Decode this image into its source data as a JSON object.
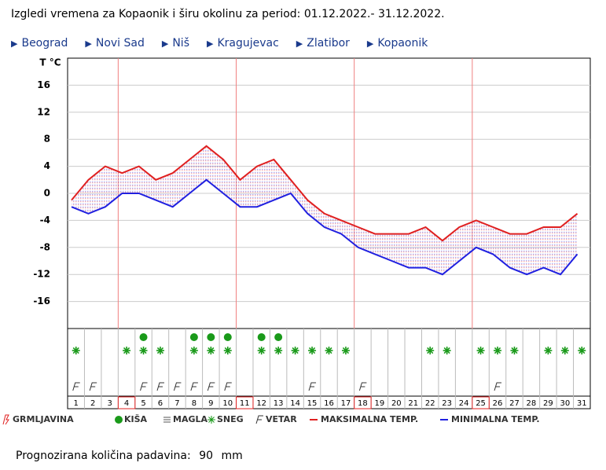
{
  "header": {
    "title": "Izgledi vremena za Kopaonik i širu okolinu za period: 01.12.2022.- 31.12.2022."
  },
  "nav": [
    "Beograd",
    "Novi Sad",
    "Niš",
    "Kragujevac",
    "Zlatibor",
    "Kopaonik"
  ],
  "chart_data": {
    "type": "line",
    "y_label": "T °C",
    "categories": [
      "1",
      "2",
      "3",
      "4",
      "5",
      "6",
      "7",
      "8",
      "9",
      "10",
      "11",
      "12",
      "13",
      "14",
      "15",
      "16",
      "17",
      "18",
      "19",
      "20",
      "21",
      "22",
      "23",
      "24",
      "25",
      "26",
      "27",
      "28",
      "29",
      "30",
      "31"
    ],
    "series": [
      {
        "name": "MAKSIMALNA TEMP.",
        "color": "#e02020",
        "values": [
          -1,
          2,
          4,
          3,
          4,
          2,
          3,
          5,
          7,
          5,
          2,
          4,
          5,
          2,
          -1,
          -3,
          -4,
          -5,
          -6,
          -6,
          -6,
          -5,
          -7,
          -5,
          -4,
          -5,
          -6,
          -6,
          -5,
          -5,
          -3
        ]
      },
      {
        "name": "MINIMALNA TEMP.",
        "color": "#2020e0",
        "values": [
          -2,
          -3,
          -2,
          0,
          0,
          -1,
          -2,
          0,
          2,
          0,
          -2,
          -2,
          -1,
          0,
          -3,
          -5,
          -6,
          -8,
          -9,
          -10,
          -11,
          -11,
          -12,
          -10,
          -8,
          -9,
          -11,
          -12,
          -11,
          -12,
          -9
        ]
      }
    ],
    "ylim": [
      -20,
      20
    ],
    "yticks": [
      16,
      12,
      8,
      4,
      0,
      -4,
      -8,
      -12,
      -16
    ],
    "grid": true,
    "highlighted_days": [
      4,
      11,
      18,
      25
    ],
    "rain_days": [
      5,
      8,
      9,
      10,
      12,
      13
    ],
    "snow_days": [
      1,
      4,
      5,
      6,
      8,
      9,
      10,
      12,
      13,
      14,
      15,
      16,
      17,
      22,
      23,
      25,
      26,
      27,
      29,
      30,
      31
    ],
    "wind_days": [
      1,
      2,
      5,
      6,
      7,
      8,
      9,
      10,
      15,
      18,
      26
    ],
    "legend": [
      "GRMLJAVINA",
      "KIŠA",
      "MAGLA",
      "SNEG",
      "VETAR"
    ]
  },
  "footer": {
    "label": "Prognozirana količina padavina:",
    "value": "90",
    "unit": "mm"
  }
}
